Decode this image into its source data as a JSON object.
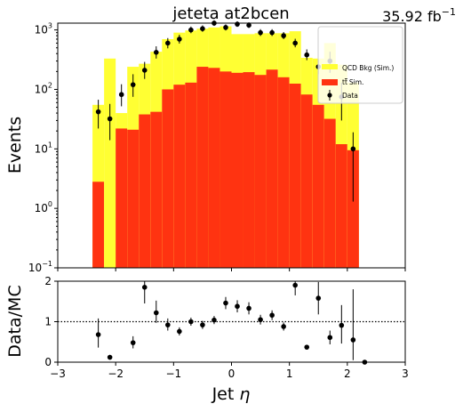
{
  "header": {
    "title": "jeteta  at2bcen",
    "lumi_value": "35.92 fb",
    "lumi_exp": "−1"
  },
  "colors": {
    "qcd": "#ffff33",
    "ttbar": "#ff3311",
    "data": "#000000",
    "background": "#ffffff"
  },
  "chart_data": [
    {
      "type": "bar",
      "title": "jeteta  at2bcen",
      "ylabel": "Events",
      "yscale": "log",
      "ylim": [
        0.1,
        1300
      ],
      "xlim": [
        -3,
        3
      ],
      "y_ticks": [
        {
          "value": 0.1,
          "base": "10",
          "exp": "−1"
        },
        {
          "value": 1,
          "base": "10",
          "exp": "0"
        },
        {
          "value": 10,
          "base": "10",
          "exp": "1"
        },
        {
          "value": 100,
          "base": "10",
          "exp": "2"
        },
        {
          "value": 1000,
          "base": "10",
          "exp": "3"
        }
      ],
      "bin_edges": [
        -2.4,
        -2.2,
        -2.0,
        -1.8,
        -1.6,
        -1.4,
        -1.2,
        -1.0,
        -0.8,
        -0.6,
        -0.4,
        -0.2,
        0.0,
        0.2,
        0.4,
        0.6,
        0.8,
        1.0,
        1.2,
        1.4,
        1.6,
        1.8,
        2.0,
        2.2
      ],
      "series": [
        {
          "name": "QCD Bkg (Sim.)",
          "stacked_total": [
            55,
            330,
            40,
            240,
            270,
            430,
            700,
            900,
            980,
            1050,
            1100,
            1150,
            850,
            850,
            880,
            880,
            880,
            950,
            340,
            330,
            600,
            260,
            130
          ]
        },
        {
          "name": "Sim.",
          "name_prefix": "t",
          "name_sup": "t",
          "values": [
            2.8,
            0.1,
            22,
            21,
            38,
            42,
            100,
            120,
            130,
            240,
            230,
            200,
            190,
            195,
            175,
            215,
            160,
            125,
            82,
            55,
            32,
            12,
            9.5
          ]
        },
        {
          "name": "Data",
          "x": [
            -2.3,
            -2.1,
            -1.9,
            -1.7,
            -1.5,
            -1.3,
            -1.1,
            -0.9,
            -0.7,
            -0.5,
            -0.3,
            -0.1,
            0.1,
            0.3,
            0.5,
            0.7,
            0.9,
            1.1,
            1.3,
            1.5,
            1.7,
            1.9,
            2.1
          ],
          "y": [
            42,
            32,
            82,
            120,
            210,
            420,
            600,
            700,
            1000,
            1050,
            1300,
            1100,
            1250,
            1200,
            900,
            900,
            800,
            600,
            380,
            240,
            300,
            75,
            10
          ],
          "err_low": [
            20,
            18,
            30,
            45,
            60,
            90,
            110,
            110,
            120,
            120,
            130,
            120,
            125,
            125,
            110,
            110,
            100,
            90,
            70,
            60,
            110,
            45,
            8.7
          ],
          "err_high": [
            25,
            25,
            40,
            60,
            80,
            110,
            130,
            130,
            140,
            140,
            150,
            140,
            145,
            145,
            130,
            130,
            120,
            110,
            90,
            80,
            130,
            55,
            9
          ]
        }
      ],
      "legend": {
        "placement": "top-right",
        "entries": [
          "QCD Bkg (Sim.)",
          "Sim.",
          "Data"
        ]
      }
    },
    {
      "type": "scatter",
      "xlabel": "Jet η",
      "xlabel_main": "Jet ",
      "xlabel_symbol": "η",
      "ylabel": "Data/MC",
      "xlim": [
        -3,
        3
      ],
      "ylim": [
        0,
        2
      ],
      "x_ticks": [
        {
          "value": -3,
          "label": "−3"
        },
        {
          "value": -2,
          "label": "−2"
        },
        {
          "value": -1,
          "label": "−1"
        },
        {
          "value": 0,
          "label": "0"
        },
        {
          "value": 1,
          "label": "1"
        },
        {
          "value": 2,
          "label": "2"
        },
        {
          "value": 3,
          "label": "3"
        }
      ],
      "y_ticks": [
        {
          "value": 0,
          "label": "0"
        },
        {
          "value": 1,
          "label": "1"
        },
        {
          "value": 2,
          "label": "2"
        }
      ],
      "reference_line": 1,
      "x": [
        -2.3,
        -2.1,
        -1.7,
        -1.5,
        -1.3,
        -1.1,
        -0.9,
        -0.7,
        -0.5,
        -0.3,
        -0.1,
        0.1,
        0.3,
        0.5,
        0.7,
        0.9,
        1.1,
        1.3,
        1.5,
        1.7,
        1.9,
        2.1,
        2.3
      ],
      "y": [
        0.68,
        0.12,
        0.48,
        1.85,
        1.22,
        0.92,
        0.76,
        1.0,
        0.92,
        1.04,
        1.46,
        1.38,
        1.33,
        1.05,
        1.16,
        0.88,
        1.9,
        0.37,
        1.58,
        0.61,
        0.91,
        0.55,
        0.0
      ],
      "err_low": [
        0.32,
        0.04,
        0.14,
        0.4,
        0.25,
        0.14,
        0.1,
        0.1,
        0.1,
        0.1,
        0.15,
        0.15,
        0.15,
        0.12,
        0.12,
        0.1,
        0.25,
        0.05,
        0.4,
        0.17,
        0.45,
        0.5,
        0.0
      ],
      "err_high": [
        0.4,
        0.06,
        0.16,
        0.45,
        0.3,
        0.16,
        0.1,
        0.1,
        0.1,
        0.1,
        0.15,
        0.15,
        0.15,
        0.12,
        0.12,
        0.1,
        0.25,
        0.05,
        0.4,
        0.17,
        0.5,
        1.25,
        0.0
      ]
    }
  ]
}
